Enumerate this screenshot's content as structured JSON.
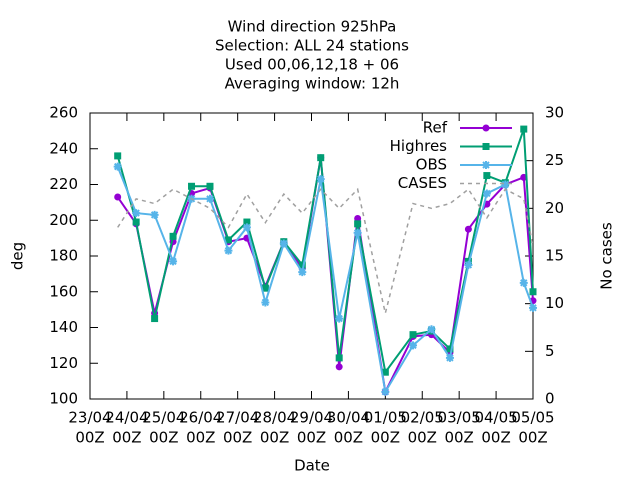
{
  "chart_data": {
    "type": "line",
    "title": [
      "Wind direction 925hPa",
      "Selection: ALL      24 stations",
      "Used  00,06,12,18 + 06",
      "Averaging window: 12h"
    ],
    "xlabel": "Date",
    "ylabel": "deg",
    "y2label": "No cases",
    "x": [
      0.75,
      1.25,
      1.75,
      2.25,
      2.75,
      3.25,
      3.75,
      4.25,
      4.75,
      5.25,
      5.75,
      6.25,
      6.75,
      7.25,
      8.0,
      8.75,
      9.25,
      9.75,
      10.25,
      10.75,
      11.25,
      11.75,
      12.0
    ],
    "series": [
      {
        "name": "Ref",
        "color": "#9400d3",
        "marker": "circle",
        "values": [
          213,
          198,
          148,
          188,
          215,
          218,
          188,
          190,
          163,
          188,
          173,
          235,
          118,
          201,
          104,
          135,
          136,
          126,
          195,
          209,
          220,
          224,
          155
        ]
      },
      {
        "name": "Highres",
        "color": "#009e73",
        "marker": "square",
        "values": [
          236,
          199,
          145,
          191,
          219,
          219,
          189,
          199,
          162,
          188,
          175,
          235,
          123,
          198,
          115,
          136,
          138,
          128,
          177,
          225,
          221,
          251,
          160
        ]
      },
      {
        "name": "OBS",
        "color": "#56b4e9",
        "marker": "star",
        "values": [
          230,
          204,
          203,
          177,
          212,
          212,
          183,
          196,
          154,
          187,
          171,
          223,
          145,
          193,
          104,
          130,
          139,
          123,
          175,
          215,
          220,
          165,
          151
        ]
      },
      {
        "name": "CASES",
        "color": "#a0a0a0",
        "dashed": true,
        "axis": "y2",
        "values": [
          18,
          21,
          20.5,
          22,
          21,
          20,
          18,
          21.5,
          18.5,
          21.5,
          19.5,
          22,
          20,
          22,
          9,
          20.5,
          20,
          20.5,
          22,
          19,
          22,
          21,
          16
        ]
      }
    ],
    "xlim": [
      0,
      12
    ],
    "xticks": [
      {
        "value": 0,
        "label": [
          "23/04",
          "00Z"
        ]
      },
      {
        "value": 1,
        "label": [
          "24/04",
          "00Z"
        ]
      },
      {
        "value": 2,
        "label": [
          "25/04",
          "00Z"
        ]
      },
      {
        "value": 3,
        "label": [
          "26/04",
          "00Z"
        ]
      },
      {
        "value": 4,
        "label": [
          "27/04",
          "00Z"
        ]
      },
      {
        "value": 5,
        "label": [
          "28/04",
          "00Z"
        ]
      },
      {
        "value": 6,
        "label": [
          "29/04",
          "00Z"
        ]
      },
      {
        "value": 7,
        "label": [
          "30/04",
          "00Z"
        ]
      },
      {
        "value": 8,
        "label": [
          "01/05",
          "00Z"
        ]
      },
      {
        "value": 9,
        "label": [
          "02/05",
          "00Z"
        ]
      },
      {
        "value": 10,
        "label": [
          "03/05",
          "00Z"
        ]
      },
      {
        "value": 11,
        "label": [
          "04/05",
          "00Z"
        ]
      },
      {
        "value": 12,
        "label": [
          "05/05",
          "00Z"
        ]
      }
    ],
    "ylim": [
      100,
      260
    ],
    "yticks": [
      100,
      120,
      140,
      160,
      180,
      200,
      220,
      240,
      260
    ],
    "y2lim": [
      0,
      30
    ],
    "y2ticks": [
      0,
      5,
      10,
      15,
      20,
      25,
      30
    ],
    "legend": "top-right"
  }
}
